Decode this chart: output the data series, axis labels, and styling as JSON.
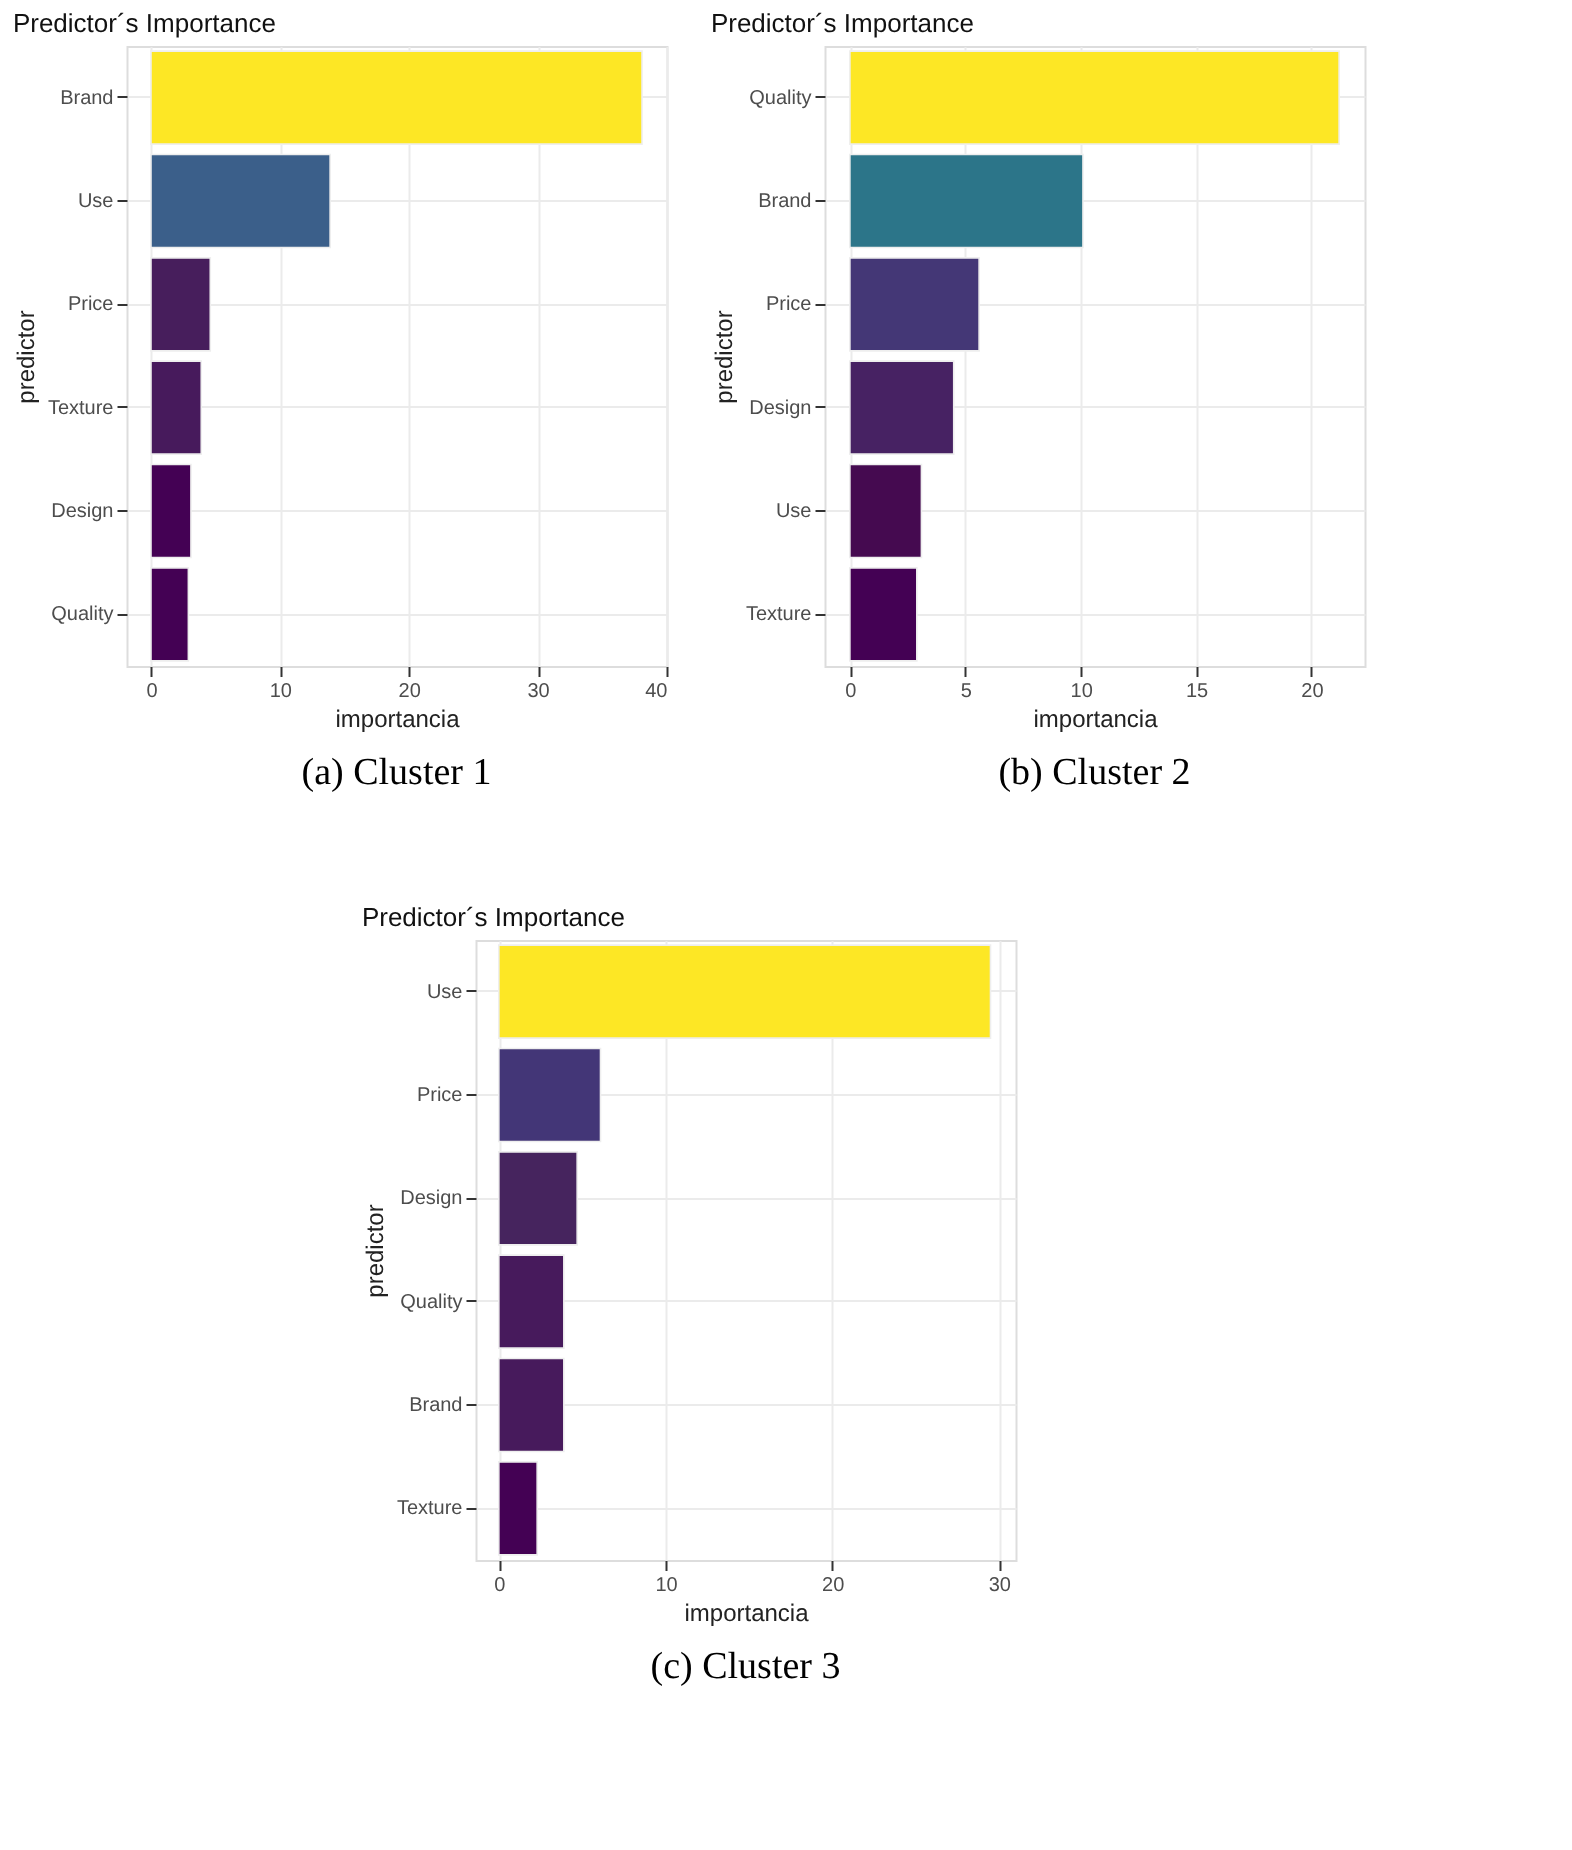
{
  "chart_data": [
    {
      "type": "bar",
      "orientation": "horizontal",
      "title": "Predictor´s Importance",
      "xlabel": "importancia",
      "ylabel": "predictor",
      "categories": [
        "Brand",
        "Use",
        "Price",
        "Texture",
        "Design",
        "Quality"
      ],
      "values": [
        38.1,
        13.9,
        4.6,
        3.9,
        3.1,
        2.9
      ],
      "colors": [
        "#fde725",
        "#3b5f8a",
        "#471e5c",
        "#471a5c",
        "#440154",
        "#440154"
      ],
      "xlim": [
        -1.9,
        40
      ],
      "xticks": [
        0,
        10,
        20,
        30,
        40
      ],
      "grid": true,
      "annotations": [
        "(a) Cluster 1"
      ]
    },
    {
      "type": "bar",
      "orientation": "horizontal",
      "title": "Predictor´s Importance",
      "xlabel": "importancia",
      "ylabel": "predictor",
      "categories": [
        "Quality",
        "Brand",
        "Price",
        "Design",
        "Use",
        "Texture"
      ],
      "values": [
        21.2,
        10.1,
        5.6,
        4.5,
        3.1,
        2.9
      ],
      "colors": [
        "#fde725",
        "#2c7589",
        "#443776",
        "#472263",
        "#450a50",
        "#440154"
      ],
      "xlim": [
        -1.1,
        22.3
      ],
      "xticks": [
        0,
        5,
        10,
        15,
        20
      ],
      "grid": true,
      "annotations": [
        "(b) Cluster 2"
      ]
    },
    {
      "type": "bar",
      "orientation": "horizontal",
      "title": "Predictor´s Importance",
      "xlabel": "importancia",
      "ylabel": "predictor",
      "categories": [
        "Use",
        "Price",
        "Design",
        "Quality",
        "Brand",
        "Texture"
      ],
      "values": [
        29.5,
        6.1,
        4.7,
        3.9,
        3.9,
        2.3
      ],
      "colors": [
        "#fde725",
        "#433677",
        "#46245e",
        "#471a5c",
        "#471a5c",
        "#440154"
      ],
      "xlim": [
        -1.4,
        31.0
      ],
      "xticks": [
        0,
        10,
        20,
        30
      ],
      "grid": true,
      "annotations": [
        "(c) Cluster 3"
      ]
    }
  ]
}
